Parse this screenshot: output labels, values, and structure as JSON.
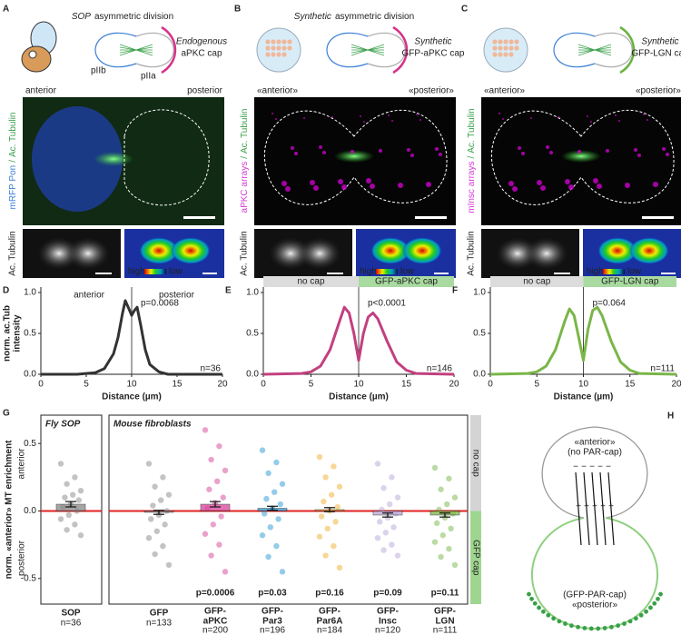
{
  "panel_letters": [
    "A",
    "B",
    "C",
    "D",
    "E",
    "F",
    "G",
    "H"
  ],
  "top_panels": [
    {
      "title_em": "SOP",
      "title_rest": "asymmetric division",
      "cap": [
        "Endogenous",
        "aPKC cap"
      ],
      "cap_color": "#d6338a",
      "cell_labels": [
        {
          "text": "pIIb",
          "color": "#3a7fd5"
        },
        {
          "text": "pIIa",
          "color": "#d6338a"
        }
      ],
      "anterior": "anterior",
      "posterior": "posterior",
      "stain": [
        {
          "text": "mRFP Pon",
          "color": "#3a7fd5"
        },
        {
          "text": "/",
          "color": "#3aa04a"
        },
        {
          "text": "Ac. Tubulin",
          "color": "#3aa04a"
        }
      ],
      "tubulin": "Ac. Tubulin",
      "high": "high",
      "low": "low"
    },
    {
      "title_em": "Synthetic",
      "title_rest": "asymmetric division",
      "cap": [
        "Synthetic",
        "GFP-aPKC cap"
      ],
      "cap_color": "#d6338a",
      "cell_labels": [],
      "anterior": "«anterior»",
      "posterior": "«posterior»",
      "stain": [
        {
          "text": "aPKC arrays",
          "color": "#d63ad6"
        },
        {
          "text": "/",
          "color": "#3aa04a"
        },
        {
          "text": "Ac. Tubulin",
          "color": "#3aa04a"
        }
      ],
      "tubulin": "Ac. Tubulin",
      "high": "high",
      "low": "low"
    },
    {
      "title_em": "",
      "title_rest": "",
      "cap": [
        "Synthetic",
        "GFP-LGN cap"
      ],
      "cap_color": "#6ab23f",
      "cell_labels": [],
      "anterior": "«anterior»",
      "posterior": "«posterior»",
      "stain": [
        {
          "text": "mInsc arrays",
          "color": "#d63ad6"
        },
        {
          "text": "/",
          "color": "#3aa04a"
        },
        {
          "text": "Ac. Tubulin",
          "color": "#3aa04a"
        }
      ],
      "tubulin": "Ac. Tubulin",
      "high": "high",
      "low": "low"
    }
  ],
  "chart_data": [
    {
      "type": "line",
      "xlabel": "Distance (µm)",
      "ylabel": [
        "norm. ac.Tub",
        "intensity"
      ],
      "xlim": [
        0,
        20
      ],
      "ylim": [
        0,
        1
      ],
      "xticks": [
        0,
        5,
        10,
        15,
        20
      ],
      "yticks": [
        {
          "value": 0,
          "label": "0.0"
        },
        0.5,
        {
          "value": 1,
          "label": "1.0"
        }
      ],
      "vline": 10,
      "x": [
        0,
        4,
        6,
        7,
        8,
        8.5,
        9,
        9.3,
        9.7,
        10,
        10.3,
        10.6,
        11,
        11.5,
        12,
        13,
        14,
        20
      ],
      "series": [
        {
          "color": "#333333",
          "values": [
            0,
            0,
            0.02,
            0.07,
            0.25,
            0.45,
            0.75,
            0.9,
            0.8,
            0.72,
            0.78,
            0.82,
            0.6,
            0.3,
            0.12,
            0.03,
            0,
            0
          ]
        }
      ],
      "left_label": "anterior",
      "right_label": "posterior",
      "p": "p=0.0068",
      "p_color": "#2e7d32",
      "n": "n=36",
      "bands": []
    },
    {
      "type": "line",
      "xlabel": "Distance (µm)",
      "ylabel": [],
      "xlim": [
        0,
        20
      ],
      "ylim": [
        0,
        1
      ],
      "xticks": [
        0,
        5,
        10,
        15,
        20
      ],
      "yticks": [
        {
          "value": 0,
          "label": "0.0"
        },
        0.5,
        {
          "value": 1,
          "label": "1.0"
        }
      ],
      "vline": 10,
      "x": [
        0,
        4,
        5,
        6,
        7,
        8,
        8.5,
        9,
        9.5,
        10,
        10.5,
        11,
        11.5,
        12,
        13,
        14,
        15,
        16,
        20
      ],
      "series": [
        {
          "color": "#c2407f",
          "values": [
            0,
            0.01,
            0.03,
            0.1,
            0.3,
            0.65,
            0.82,
            0.75,
            0.5,
            0.17,
            0.5,
            0.7,
            0.75,
            0.68,
            0.4,
            0.15,
            0.05,
            0.01,
            0
          ]
        }
      ],
      "left_label": "",
      "right_label": "",
      "p": "p<0.0001",
      "p_color": "#2e7d32",
      "n": "n=146",
      "bands": [
        {
          "label": "no cap",
          "color": "#dcdcdc"
        },
        {
          "label": "GFP-aPKC cap",
          "color": "#a9dba0"
        }
      ]
    },
    {
      "type": "line",
      "xlabel": "Distance (µm)",
      "ylabel": [],
      "xlim": [
        0,
        20
      ],
      "ylim": [
        0,
        1
      ],
      "xticks": [
        0,
        5,
        10,
        15,
        20
      ],
      "yticks": [
        {
          "value": 0,
          "label": "0.0"
        },
        0.5,
        {
          "value": 1,
          "label": "1.0"
        }
      ],
      "vline": 10,
      "x": [
        0,
        4,
        5,
        6,
        7,
        8,
        8.5,
        9,
        9.5,
        10,
        10.5,
        11,
        11.5,
        12,
        13,
        14,
        15,
        16,
        20
      ],
      "series": [
        {
          "color": "#7ab648",
          "values": [
            0,
            0.01,
            0.03,
            0.1,
            0.3,
            0.65,
            0.8,
            0.72,
            0.45,
            0.17,
            0.55,
            0.78,
            0.82,
            0.72,
            0.4,
            0.15,
            0.05,
            0.01,
            0
          ]
        }
      ],
      "left_label": "",
      "right_label": "",
      "p": "p=0.064",
      "p_color": "#c62828",
      "n": "n=111",
      "bands": [
        {
          "label": "no cap",
          "color": "#dcdcdc"
        },
        {
          "label": "GFP-LGN cap",
          "color": "#a9dba0"
        }
      ]
    },
    {
      "type": "dotbar",
      "ylabel": "norm. «anterior» MT enrichment",
      "inner_labels": [
        "anterior",
        "posterior"
      ],
      "groups": [
        "Fly SOP",
        "Mouse fibroblasts"
      ],
      "side_bands": [
        {
          "label": "no cap",
          "color": "#d4d4d4"
        },
        {
          "label": "GFP cap",
          "color": "#9fd68f"
        }
      ],
      "ylim": [
        -0.69,
        0.71
      ],
      "yticks": [
        -0.5,
        {
          "value": 0,
          "label": "0.0"
        },
        0.5
      ],
      "categories": [
        {
          "prefix": "",
          "name": "SOP",
          "color": "#888888",
          "mean": 0.05,
          "sem": 0.02,
          "n": "n=36",
          "p": "",
          "p_color": "#333",
          "points": [
            0.35,
            0.25,
            0.2,
            0.15,
            0.12,
            0.1,
            0.08,
            0.05,
            0.03,
            0.0,
            -0.03,
            -0.06,
            -0.1,
            -0.14,
            -0.18
          ]
        },
        {
          "prefix": "",
          "name": "GFP",
          "color": "#888888",
          "mean": -0.01,
          "sem": 0.015,
          "n": "n=133",
          "p": "",
          "p_color": "#333",
          "points": [
            0.35,
            0.25,
            0.18,
            0.12,
            0.08,
            0.04,
            0.0,
            -0.03,
            -0.06,
            -0.1,
            -0.15,
            -0.2,
            -0.26,
            -0.32,
            -0.4
          ]
        },
        {
          "prefix": "GFP-",
          "name": "aPKC",
          "color": "#d6449a",
          "mean": 0.05,
          "sem": 0.02,
          "n": "n=200",
          "p": "p=0.0006",
          "p_color": "#2e7d32",
          "points": [
            0.6,
            0.48,
            0.38,
            0.3,
            0.22,
            0.16,
            0.1,
            0.06,
            0.02,
            -0.04,
            -0.1,
            -0.17,
            -0.25,
            -0.33,
            -0.45
          ]
        },
        {
          "prefix": "GFP-",
          "name": "Par3",
          "color": "#2a9ad6",
          "mean": 0.02,
          "sem": 0.015,
          "n": "n=196",
          "p": "p=0.03",
          "p_color": "#2e7d32",
          "points": [
            0.45,
            0.36,
            0.28,
            0.2,
            0.14,
            0.09,
            0.05,
            0.02,
            -0.02,
            -0.06,
            -0.12,
            -0.18,
            -0.26,
            -0.34,
            -0.45
          ]
        },
        {
          "prefix": "GFP-",
          "name": "Par6A",
          "color": "#f0b030",
          "mean": 0.01,
          "sem": 0.015,
          "n": "n=184",
          "p": "p=0.16",
          "p_color": "#c62828",
          "points": [
            0.4,
            0.33,
            0.25,
            0.18,
            0.12,
            0.07,
            0.03,
            0.0,
            -0.04,
            -0.08,
            -0.13,
            -0.19,
            -0.26,
            -0.33,
            -0.42
          ]
        },
        {
          "prefix": "GFP-",
          "name": "Insc",
          "color": "#b8a6d8",
          "mean": -0.03,
          "sem": 0.015,
          "n": "n=120",
          "p": "p=0.09",
          "p_color": "#c62828",
          "points": [
            0.35,
            0.25,
            0.17,
            0.1,
            0.05,
            0.01,
            -0.02,
            -0.05,
            -0.08,
            -0.12,
            -0.16,
            -0.2,
            -0.25,
            -0.29,
            -0.33
          ]
        },
        {
          "prefix": "GFP-",
          "name": "LGN",
          "color": "#7ab648",
          "mean": -0.03,
          "sem": 0.015,
          "n": "n=111",
          "p": "p=0.11",
          "p_color": "#c62828",
          "points": [
            0.32,
            0.24,
            0.16,
            0.1,
            0.05,
            0.01,
            -0.02,
            -0.05,
            -0.09,
            -0.13,
            -0.18,
            -0.23,
            -0.28,
            -0.34,
            -0.4
          ]
        }
      ]
    }
  ],
  "diagram": {
    "top_label": [
      "«anterior»",
      "(no PAR-cap)"
    ],
    "bottom_label": [
      "(GFP-PAR-cap)",
      "«posterior»"
    ]
  }
}
